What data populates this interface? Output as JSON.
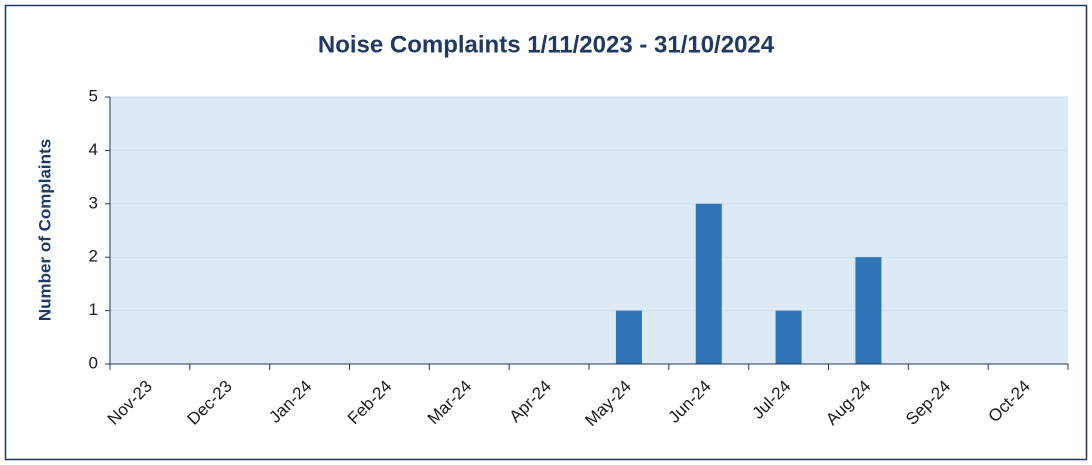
{
  "chart_data": {
    "type": "bar",
    "title": "Noise Complaints 1/11/2023 - 31/10/2024",
    "y_label": "Number of Complaints",
    "categories": [
      "Nov-23",
      "Dec-23",
      "Jan-24",
      "Feb-24",
      "Mar-24",
      "Apr-24",
      "May-24",
      "Jun-24",
      "Jul-24",
      "Aug-24",
      "Sep-24",
      "Oct-24"
    ],
    "values": [
      0,
      0,
      0,
      0,
      0,
      0,
      1,
      3,
      1,
      2,
      0,
      0
    ],
    "color": "#2e75b6",
    "ylim": [
      0,
      5
    ],
    "yticks": [
      0,
      1,
      2,
      3,
      4,
      5
    ],
    "grid": true
  }
}
